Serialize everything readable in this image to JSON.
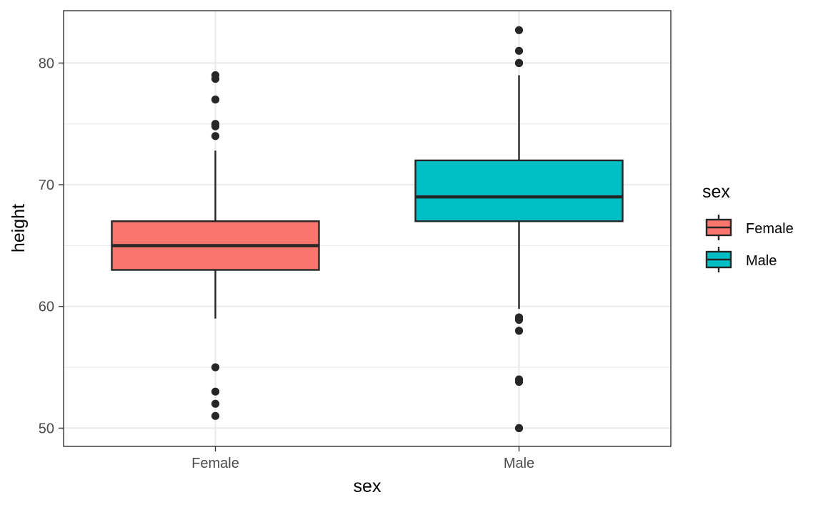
{
  "chart_data": {
    "type": "boxplot",
    "xlabel": "sex",
    "ylabel": "height",
    "ylim": [
      48.5,
      84.3
    ],
    "yticks": [
      50,
      60,
      70,
      80
    ],
    "y_minor_ticks": [
      55,
      65,
      75
    ],
    "grid": true,
    "categories": [
      "Female",
      "Male"
    ],
    "legend": {
      "title": "sex",
      "placement": "right",
      "entries": [
        "Female",
        "Male"
      ]
    },
    "series": [
      {
        "category": "Female",
        "color": "#F8766D",
        "whisker_low": 59,
        "q1": 63,
        "median": 65,
        "q3": 67,
        "whisker_high": 72.8,
        "outliers": [
          79,
          78.7,
          77,
          75,
          74.8,
          74,
          55,
          53,
          52,
          51
        ]
      },
      {
        "category": "Male",
        "color": "#00BFC4",
        "whisker_low": 59.8,
        "q1": 67,
        "median": 69,
        "q3": 72,
        "whisker_high": 79,
        "outliers": [
          82.7,
          81,
          80,
          80,
          59.1,
          58.9,
          58,
          54,
          53.8,
          50,
          50
        ]
      }
    ]
  }
}
